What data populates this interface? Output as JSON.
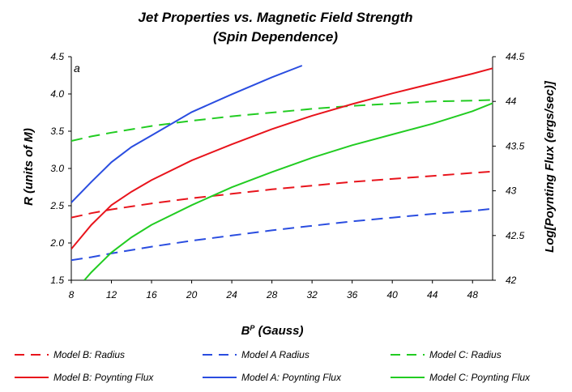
{
  "chart_data": {
    "type": "line",
    "title": "Jet Properties vs. Magnetic Field Strength",
    "subtitle": "(Spin Dependence)",
    "panel_label": "a",
    "xlabel": "B",
    "xlabel_sup": "P",
    "xlabel_unit": " (Gauss)",
    "ylabel": "R (units of M)",
    "y2label": "Log[Poynting Flux (ergs/sec)]",
    "xlim": [
      8,
      50
    ],
    "ylim": [
      1.5,
      4.5
    ],
    "y2lim": [
      42,
      44.5
    ],
    "xticks": [
      "8",
      "12",
      "16",
      "20",
      "24",
      "28",
      "32",
      "36",
      "40",
      "44",
      "48"
    ],
    "yticks": [
      "1.5",
      "2.0",
      "2.5",
      "3.0",
      "3.5",
      "4.0",
      "4.5"
    ],
    "y2ticks": [
      "42",
      "42.5",
      "43",
      "43.5",
      "44",
      "44.5"
    ],
    "series": [
      {
        "name": "Model B: Radius",
        "axis": "left",
        "style": "dashed",
        "color": "#e8141c",
        "x": [
          8,
          10,
          12,
          16,
          20,
          24,
          28,
          32,
          36,
          40,
          44,
          48,
          50
        ],
        "y": [
          2.34,
          2.4,
          2.45,
          2.53,
          2.6,
          2.66,
          2.72,
          2.77,
          2.82,
          2.86,
          2.9,
          2.94,
          2.96
        ]
      },
      {
        "name": "Model A Radius",
        "axis": "left",
        "style": "dashed",
        "color": "#2a4de0",
        "x": [
          8,
          10,
          12,
          16,
          20,
          24,
          28,
          32,
          36,
          40,
          44,
          48,
          50
        ],
        "y": [
          1.77,
          1.81,
          1.86,
          1.95,
          2.03,
          2.1,
          2.17,
          2.23,
          2.29,
          2.34,
          2.39,
          2.43,
          2.46
        ]
      },
      {
        "name": "Model C: Radius",
        "axis": "left",
        "style": "dashed",
        "color": "#22cc22",
        "x": [
          8,
          10,
          12,
          16,
          20,
          24,
          28,
          32,
          36,
          40,
          44,
          48,
          50
        ],
        "y": [
          3.37,
          3.43,
          3.48,
          3.57,
          3.64,
          3.7,
          3.75,
          3.8,
          3.84,
          3.87,
          3.9,
          3.91,
          3.92
        ]
      },
      {
        "name": "Model B: Poynting Flux",
        "axis": "right",
        "style": "solid",
        "color": "#e8141c",
        "x": [
          8,
          10,
          12,
          14,
          16,
          20,
          24,
          28,
          32,
          36,
          40,
          44,
          48,
          50
        ],
        "y": [
          42.35,
          42.62,
          42.84,
          42.99,
          43.12,
          43.34,
          43.52,
          43.69,
          43.84,
          43.97,
          44.09,
          44.2,
          44.31,
          44.37
        ]
      },
      {
        "name": "Model A: Poynting Flux",
        "axis": "right",
        "style": "solid",
        "color": "#2a4de0",
        "x": [
          8,
          10,
          12,
          14,
          16,
          20,
          24,
          28,
          31
        ],
        "y": [
          42.87,
          43.1,
          43.32,
          43.49,
          43.62,
          43.88,
          44.08,
          44.27,
          44.4
        ]
      },
      {
        "name": "Model C: Poynting Flux",
        "axis": "right",
        "style": "solid",
        "color": "#22cc22",
        "x": [
          9.3,
          10,
          12,
          14,
          16,
          20,
          24,
          28,
          32,
          36,
          40,
          44,
          48,
          50
        ],
        "y": [
          42.0,
          42.09,
          42.31,
          42.48,
          42.62,
          42.84,
          43.04,
          43.21,
          43.37,
          43.51,
          43.63,
          43.75,
          43.89,
          43.98
        ]
      }
    ],
    "legend": {
      "position": "bottom",
      "order": [
        "Model B: Radius",
        "Model A Radius",
        "Model C: Radius",
        "Model B: Poynting Flux",
        "Model A: Poynting Flux",
        "Model C: Poynting Flux"
      ]
    }
  }
}
